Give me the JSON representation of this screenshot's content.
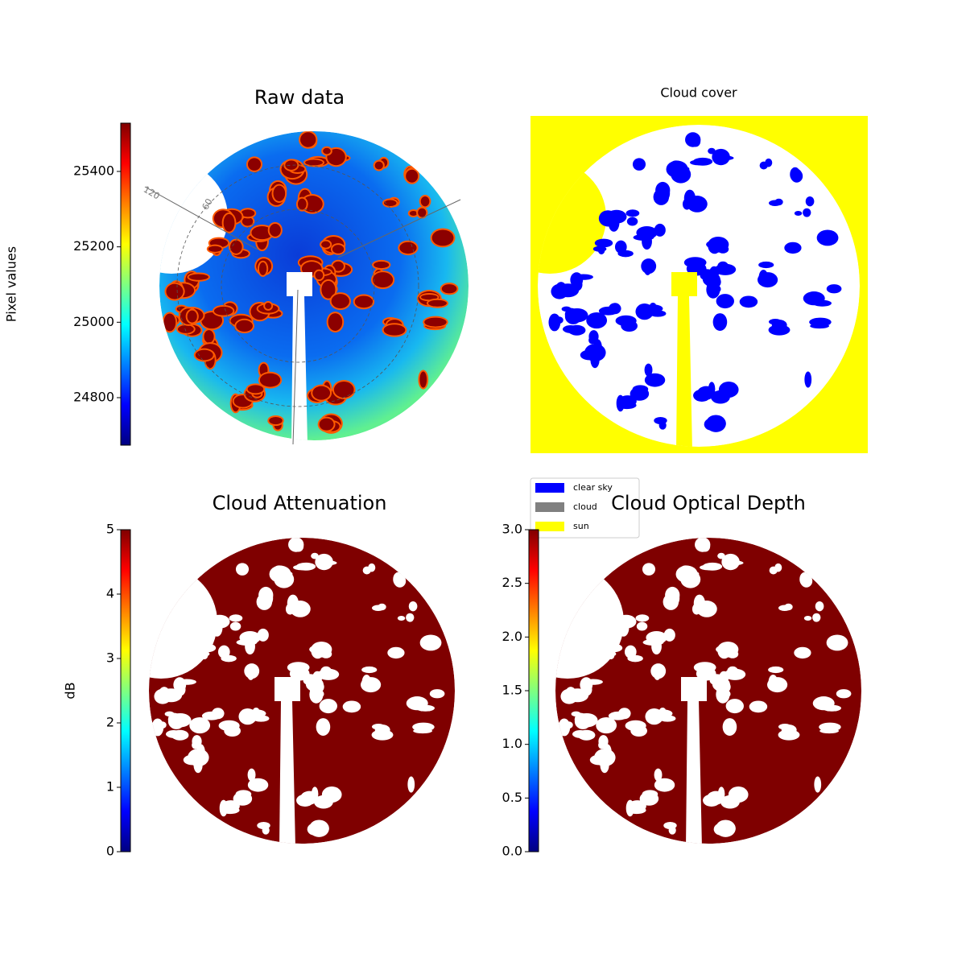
{
  "chart_data": [
    {
      "type": "image",
      "title": "Raw data",
      "cmap": "jet",
      "ylabel": "Pixel values",
      "ylim": [
        24674,
        25528
      ],
      "yticks": [
        24800,
        25000,
        25200,
        25400
      ],
      "annotations": [
        "120",
        "60"
      ]
    },
    {
      "type": "image",
      "title": "Cloud cover",
      "series": [
        {
          "name": "clear sky",
          "color": "#0000ff"
        },
        {
          "name": "cloud",
          "color": "#808080"
        },
        {
          "name": "sun",
          "color": "#ffff00"
        }
      ],
      "legend": "lower left"
    },
    {
      "type": "image",
      "title": "Cloud Attenuation",
      "cmap": "jet",
      "ylabel": "dB",
      "ylim": [
        0,
        5
      ],
      "yticks": [
        0,
        1,
        2,
        3,
        4,
        5
      ]
    },
    {
      "type": "image",
      "title": "Cloud Optical Depth",
      "cmap": "jet",
      "ylim": [
        0,
        3
      ],
      "yticks": [
        {
          "value": 0,
          "label": "0.0"
        },
        0.5,
        {
          "value": 1,
          "label": "1.0"
        },
        1.5,
        {
          "value": 2,
          "label": "2.0"
        },
        2.5,
        {
          "value": 3,
          "label": "3.0"
        }
      ]
    }
  ]
}
